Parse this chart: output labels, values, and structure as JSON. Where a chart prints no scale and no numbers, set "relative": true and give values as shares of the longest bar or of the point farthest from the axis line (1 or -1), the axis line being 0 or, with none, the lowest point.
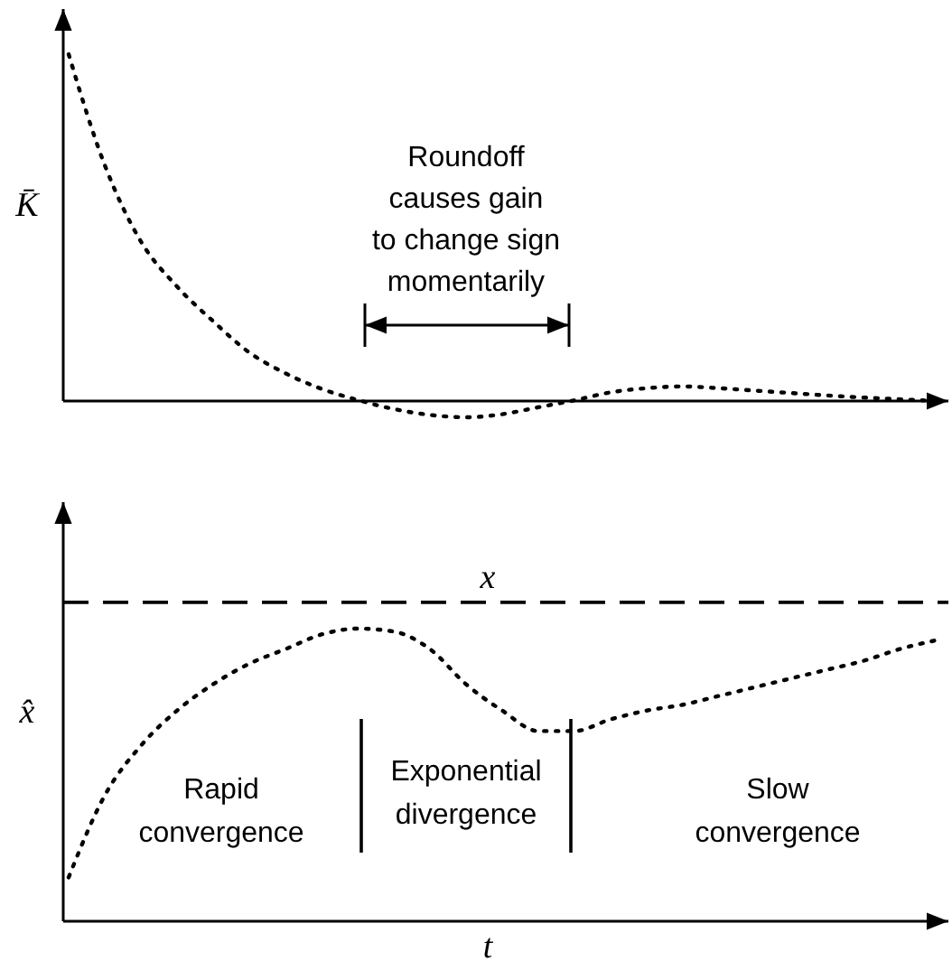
{
  "chart_data": [
    {
      "type": "line",
      "relative": true,
      "ylabel": "K̄",
      "line_style": "dotted",
      "marker": "none",
      "categories": [
        null,
        null,
        null,
        null,
        null,
        null,
        null,
        null,
        null,
        null,
        null,
        null,
        null,
        null,
        null,
        null,
        null,
        null,
        null,
        null,
        null,
        null,
        null,
        null,
        null
      ],
      "series": [
        {
          "color": "#000000",
          "values": [
            1.0,
            0.68,
            0.46,
            0.33,
            0.23,
            0.14,
            0.08,
            0.035,
            0.003,
            -0.023,
            -0.04,
            -0.047,
            -0.038,
            -0.018,
            0.002,
            0.025,
            0.037,
            0.042,
            0.037,
            0.03,
            0.023,
            0.016,
            0.01,
            0.005,
            0.0
          ]
        }
      ],
      "annotations": [
        "Roundoff\ncauses gain\nto change sign\nmomentarily"
      ]
    },
    {
      "type": "line",
      "relative": true,
      "ylabel": "x̂",
      "xlabel": "t",
      "line_style": "dotted",
      "marker": "none",
      "categories": [
        null,
        null,
        null,
        null,
        null,
        null,
        null,
        null,
        null,
        null,
        null,
        null,
        null,
        null,
        null,
        null,
        null,
        null,
        null,
        null,
        null,
        null,
        null,
        null,
        null
      ],
      "series": [
        {
          "color": "#000000",
          "values": [
            0.15,
            0.43,
            0.6,
            0.72,
            0.81,
            0.88,
            0.93,
            0.98,
            1.0,
            0.99,
            0.93,
            0.81,
            0.72,
            0.65,
            0.65,
            0.69,
            0.72,
            0.74,
            0.77,
            0.8,
            0.83,
            0.86,
            0.89,
            0.93,
            0.96
          ]
        }
      ],
      "ref_lines": [
        {
          "axis": "y",
          "value": 1.09,
          "label": "x",
          "color": "#000000",
          "line_style": "dashed"
        }
      ],
      "annotations": [
        "Rapid\nconvergence",
        "Exponential\ndivergence",
        "Slow\nconvergence"
      ]
    }
  ]
}
